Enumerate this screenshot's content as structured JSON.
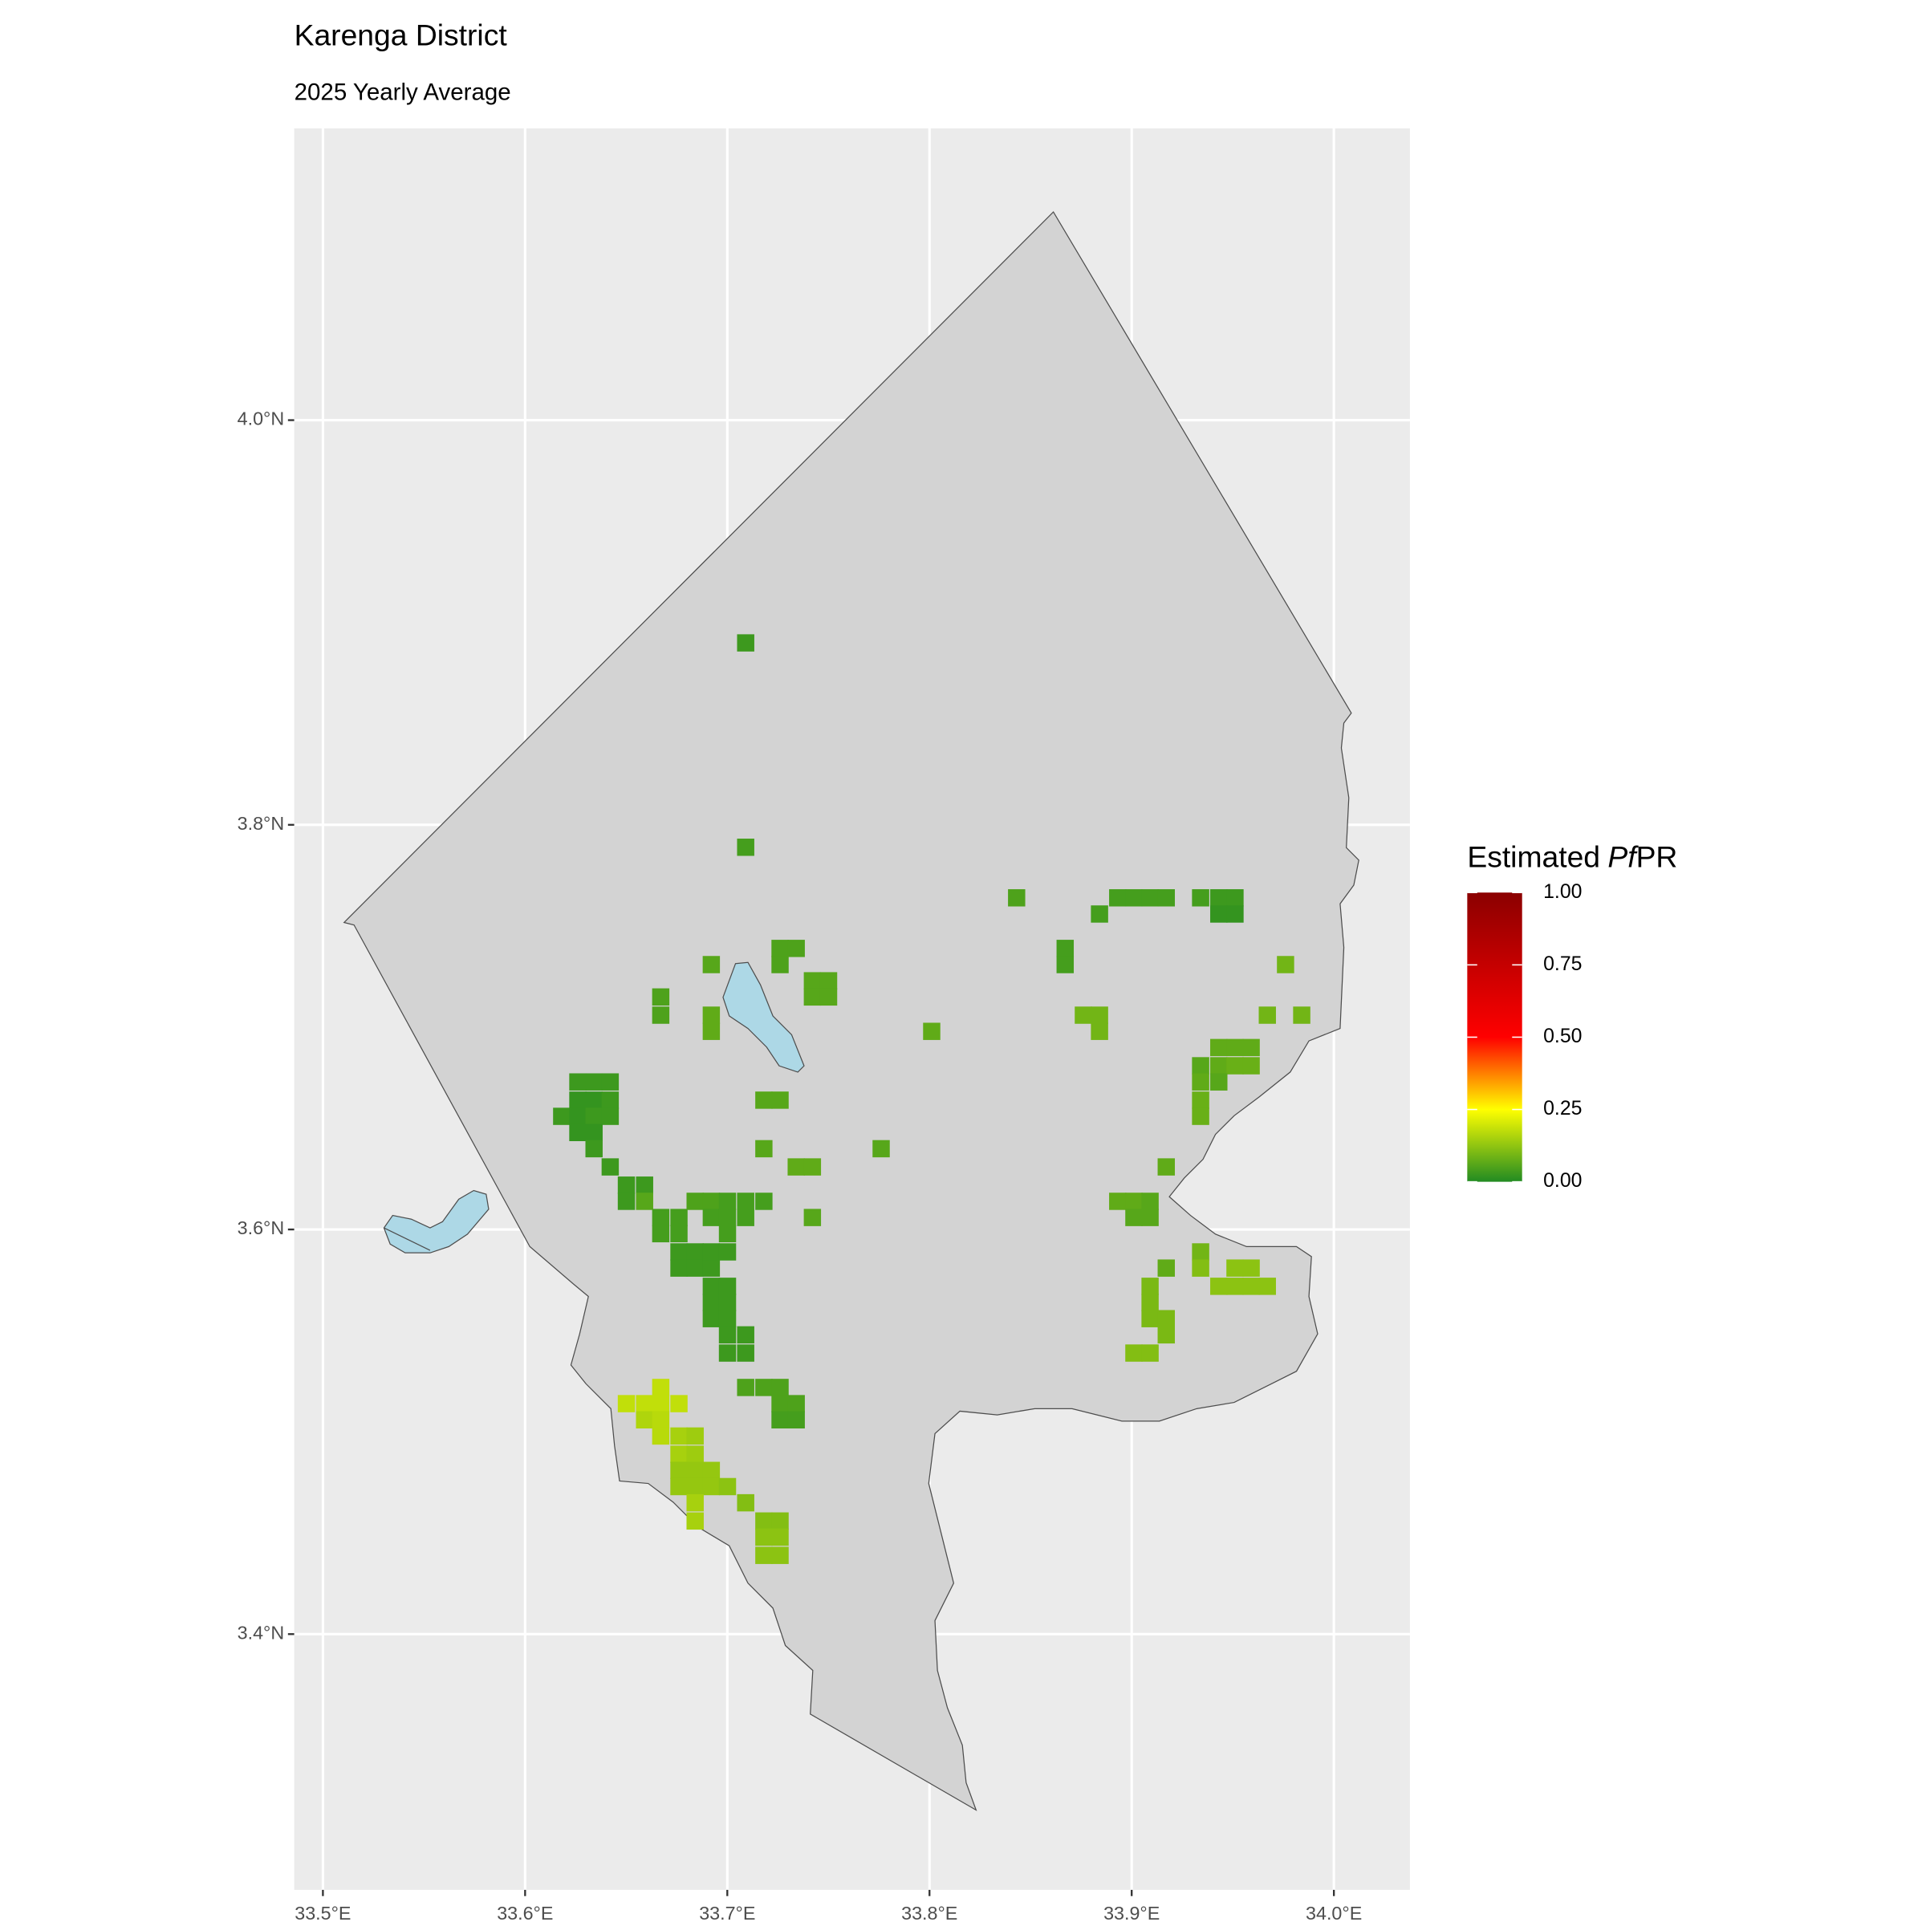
{
  "chart_data": {
    "type": "raster-map",
    "title": "Karenga District",
    "subtitle": "2025 Yearly Average",
    "xlim": [
      33.4858,
      34.0376
    ],
    "ylim": [
      3.2736,
      4.1442
    ],
    "xticks": [
      {
        "value": 33.5,
        "label": "33.5°E"
      },
      {
        "value": 33.6,
        "label": "33.6°E"
      },
      {
        "value": 33.7,
        "label": "33.7°E"
      },
      {
        "value": 33.8,
        "label": "33.8°E"
      },
      {
        "value": 33.9,
        "label": "33.9°E"
      },
      {
        "value": 34.0,
        "label": "34.0°E"
      }
    ],
    "yticks": [
      {
        "value": 3.4,
        "label": "3.4°N"
      },
      {
        "value": 3.6,
        "label": "3.6°N"
      },
      {
        "value": 3.8,
        "label": "3.8°N"
      },
      {
        "value": 4.0,
        "label": "4.0°N"
      }
    ],
    "grid": true,
    "legend": {
      "title": [
        "Estimated",
        "Pf",
        "PR"
      ],
      "position": "right",
      "limits": [
        0,
        1
      ],
      "ticks": [
        {
          "value": 0,
          "label": "0.00"
        },
        {
          "value": 0.25,
          "label": "0.25"
        },
        {
          "value": 0.5,
          "label": "0.50"
        },
        {
          "value": 0.75,
          "label": "0.75"
        },
        {
          "value": 1,
          "label": "1.00"
        }
      ],
      "color_stops": [
        0,
        0.25,
        0.5,
        1
      ],
      "colors": [
        "#228B22",
        "#FFFF00",
        "#FF0000",
        "#8B0000"
      ]
    },
    "cells": [
      [
        33.709,
        3.89,
        0.03
      ],
      [
        33.709,
        3.789,
        0.04
      ],
      [
        33.843,
        3.764,
        0.05
      ],
      [
        33.893,
        3.764,
        0.04
      ],
      [
        33.901,
        3.764,
        0.04
      ],
      [
        33.909,
        3.764,
        0.04
      ],
      [
        33.917,
        3.764,
        0.04
      ],
      [
        33.934,
        3.764,
        0.04
      ],
      [
        33.943,
        3.764,
        0.03
      ],
      [
        33.951,
        3.764,
        0.03
      ],
      [
        33.943,
        3.756,
        0.02
      ],
      [
        33.951,
        3.756,
        0.02
      ],
      [
        33.884,
        3.756,
        0.04
      ],
      [
        33.867,
        3.739,
        0.04
      ],
      [
        33.867,
        3.731,
        0.04
      ],
      [
        33.976,
        3.731,
        0.09
      ],
      [
        33.967,
        3.706,
        0.09
      ],
      [
        33.984,
        3.706,
        0.09
      ],
      [
        33.876,
        3.706,
        0.09
      ],
      [
        33.884,
        3.706,
        0.09
      ],
      [
        33.884,
        3.698,
        0.09
      ],
      [
        33.801,
        3.698,
        0.07
      ],
      [
        33.726,
        3.739,
        0.05
      ],
      [
        33.734,
        3.739,
        0.05
      ],
      [
        33.726,
        3.731,
        0.05
      ],
      [
        33.692,
        3.731,
        0.06
      ],
      [
        33.742,
        3.723,
        0.06
      ],
      [
        33.75,
        3.723,
        0.06
      ],
      [
        33.742,
        3.715,
        0.06
      ],
      [
        33.75,
        3.715,
        0.06
      ],
      [
        33.667,
        3.715,
        0.05
      ],
      [
        33.667,
        3.706,
        0.05
      ],
      [
        33.692,
        3.706,
        0.07
      ],
      [
        33.692,
        3.698,
        0.07
      ],
      [
        33.943,
        3.69,
        0.07
      ],
      [
        33.951,
        3.69,
        0.07
      ],
      [
        33.959,
        3.69,
        0.07
      ],
      [
        33.934,
        3.681,
        0.06
      ],
      [
        33.943,
        3.681,
        0.07
      ],
      [
        33.951,
        3.681,
        0.08
      ],
      [
        33.959,
        3.681,
        0.08
      ],
      [
        33.934,
        3.673,
        0.07
      ],
      [
        33.943,
        3.673,
        0.06
      ],
      [
        33.934,
        3.664,
        0.08
      ],
      [
        33.934,
        3.656,
        0.08
      ],
      [
        33.718,
        3.664,
        0.06
      ],
      [
        33.726,
        3.664,
        0.06
      ],
      [
        33.718,
        3.64,
        0.06
      ],
      [
        33.776,
        3.64,
        0.06
      ],
      [
        33.734,
        3.631,
        0.07
      ],
      [
        33.742,
        3.631,
        0.07
      ],
      [
        33.917,
        3.631,
        0.07
      ],
      [
        33.626,
        3.673,
        0.03
      ],
      [
        33.634,
        3.673,
        0.03
      ],
      [
        33.642,
        3.673,
        0.03
      ],
      [
        33.626,
        3.664,
        0.02
      ],
      [
        33.634,
        3.664,
        0.02
      ],
      [
        33.642,
        3.664,
        0.03
      ],
      [
        33.618,
        3.656,
        0.03
      ],
      [
        33.626,
        3.656,
        0.02
      ],
      [
        33.634,
        3.656,
        0.03
      ],
      [
        33.642,
        3.656,
        0.03
      ],
      [
        33.626,
        3.648,
        0.02
      ],
      [
        33.634,
        3.648,
        0.02
      ],
      [
        33.634,
        3.64,
        0.03
      ],
      [
        33.642,
        3.631,
        0.03
      ],
      [
        33.65,
        3.622,
        0.03
      ],
      [
        33.659,
        3.622,
        0.03
      ],
      [
        33.65,
        3.614,
        0.03
      ],
      [
        33.659,
        3.614,
        0.06
      ],
      [
        33.667,
        3.606,
        0.04
      ],
      [
        33.676,
        3.606,
        0.04
      ],
      [
        33.667,
        3.598,
        0.04
      ],
      [
        33.676,
        3.598,
        0.04
      ],
      [
        33.676,
        3.589,
        0.03
      ],
      [
        33.684,
        3.589,
        0.03
      ],
      [
        33.676,
        3.581,
        0.03
      ],
      [
        33.684,
        3.581,
        0.03
      ],
      [
        33.692,
        3.581,
        0.03
      ],
      [
        33.684,
        3.614,
        0.05
      ],
      [
        33.692,
        3.614,
        0.05
      ],
      [
        33.692,
        3.606,
        0.04
      ],
      [
        33.7,
        3.614,
        0.04
      ],
      [
        33.709,
        3.614,
        0.04
      ],
      [
        33.718,
        3.614,
        0.04
      ],
      [
        33.709,
        3.606,
        0.04
      ],
      [
        33.7,
        3.606,
        0.04
      ],
      [
        33.7,
        3.598,
        0.04
      ],
      [
        33.692,
        3.589,
        0.03
      ],
      [
        33.7,
        3.589,
        0.03
      ],
      [
        33.692,
        3.572,
        0.03
      ],
      [
        33.7,
        3.572,
        0.03
      ],
      [
        33.692,
        3.564,
        0.03
      ],
      [
        33.7,
        3.564,
        0.03
      ],
      [
        33.692,
        3.556,
        0.03
      ],
      [
        33.7,
        3.556,
        0.03
      ],
      [
        33.7,
        3.548,
        0.03
      ],
      [
        33.709,
        3.548,
        0.03
      ],
      [
        33.7,
        3.539,
        0.03
      ],
      [
        33.709,
        3.539,
        0.03
      ],
      [
        33.742,
        3.606,
        0.06
      ],
      [
        33.893,
        3.614,
        0.07
      ],
      [
        33.901,
        3.614,
        0.07
      ],
      [
        33.909,
        3.614,
        0.06
      ],
      [
        33.901,
        3.606,
        0.06
      ],
      [
        33.909,
        3.606,
        0.06
      ],
      [
        33.934,
        3.589,
        0.09
      ],
      [
        33.917,
        3.581,
        0.07
      ],
      [
        33.934,
        3.581,
        0.11
      ],
      [
        33.951,
        3.581,
        0.12
      ],
      [
        33.959,
        3.581,
        0.12
      ],
      [
        33.943,
        3.572,
        0.12
      ],
      [
        33.951,
        3.572,
        0.12
      ],
      [
        33.959,
        3.572,
        0.12
      ],
      [
        33.967,
        3.572,
        0.12
      ],
      [
        33.909,
        3.572,
        0.1
      ],
      [
        33.909,
        3.564,
        0.1
      ],
      [
        33.909,
        3.556,
        0.1
      ],
      [
        33.917,
        3.556,
        0.1
      ],
      [
        33.917,
        3.548,
        0.1
      ],
      [
        33.901,
        3.539,
        0.11
      ],
      [
        33.909,
        3.539,
        0.11
      ],
      [
        33.709,
        3.522,
        0.05
      ],
      [
        33.718,
        3.522,
        0.05
      ],
      [
        33.726,
        3.522,
        0.05
      ],
      [
        33.726,
        3.514,
        0.05
      ],
      [
        33.734,
        3.514,
        0.05
      ],
      [
        33.726,
        3.506,
        0.04
      ],
      [
        33.734,
        3.506,
        0.04
      ],
      [
        33.667,
        3.522,
        0.18
      ],
      [
        33.65,
        3.514,
        0.18
      ],
      [
        33.659,
        3.514,
        0.18
      ],
      [
        33.667,
        3.514,
        0.18
      ],
      [
        33.676,
        3.514,
        0.18
      ],
      [
        33.659,
        3.506,
        0.16
      ],
      [
        33.667,
        3.506,
        0.17
      ],
      [
        33.667,
        3.498,
        0.17
      ],
      [
        33.676,
        3.498,
        0.15
      ],
      [
        33.684,
        3.498,
        0.14
      ],
      [
        33.676,
        3.489,
        0.15
      ],
      [
        33.684,
        3.489,
        0.14
      ],
      [
        33.676,
        3.481,
        0.13
      ],
      [
        33.684,
        3.481,
        0.13
      ],
      [
        33.692,
        3.481,
        0.13
      ],
      [
        33.676,
        3.473,
        0.13
      ],
      [
        33.684,
        3.473,
        0.13
      ],
      [
        33.692,
        3.473,
        0.13
      ],
      [
        33.7,
        3.473,
        0.12
      ],
      [
        33.684,
        3.465,
        0.15
      ],
      [
        33.684,
        3.456,
        0.15
      ],
      [
        33.709,
        3.465,
        0.11
      ],
      [
        33.718,
        3.456,
        0.11
      ],
      [
        33.726,
        3.456,
        0.11
      ],
      [
        33.718,
        3.448,
        0.12
      ],
      [
        33.726,
        3.448,
        0.12
      ],
      [
        33.718,
        3.439,
        0.12
      ],
      [
        33.726,
        3.439,
        0.12
      ]
    ]
  }
}
